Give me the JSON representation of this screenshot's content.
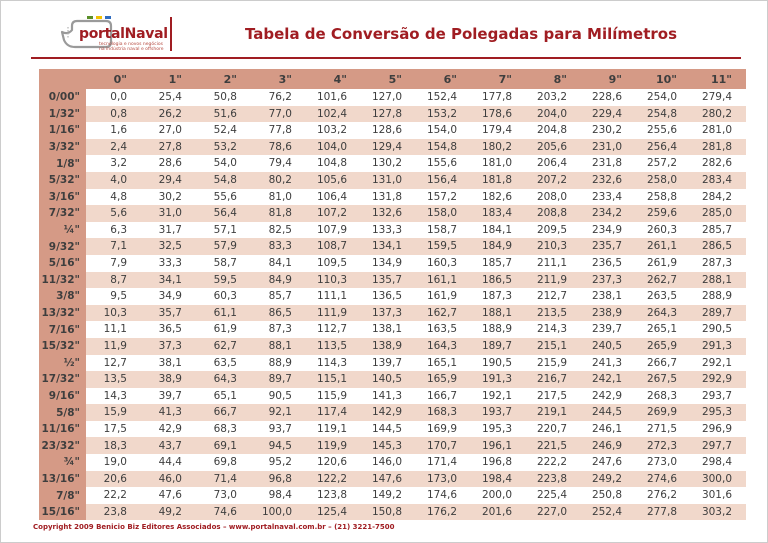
{
  "page": {
    "background": "#ffffff",
    "border_color": "#cccccc",
    "accent_color": "#a01d22"
  },
  "logo": {
    "wordmark": "portalNaval",
    "tagline_line1": "tecnologia e novos negócios",
    "tagline_line2": "na indústria naval e offshore",
    "icon": "ship-outline-icon",
    "accent_dashes": [
      "#5a8f29",
      "#f2c200",
      "#2f6bbf"
    ]
  },
  "header": {
    "title": "Tabela de Conversão de Polegadas para Milímetros"
  },
  "table": {
    "header_bg": "#d59a86",
    "stripe_bg": "#f1d8cb",
    "columns": [
      "0\"",
      "1\"",
      "2\"",
      "3\"",
      "4\"",
      "5\"",
      "6\"",
      "7\"",
      "8\"",
      "9\"",
      "10\"",
      "11\""
    ],
    "rows": [
      {
        "label": "0/00\"",
        "values": [
          "0,0",
          "25,4",
          "50,8",
          "76,2",
          "101,6",
          "127,0",
          "152,4",
          "177,8",
          "203,2",
          "228,6",
          "254,0",
          "279,4"
        ]
      },
      {
        "label": "1/32\"",
        "values": [
          "0,8",
          "26,2",
          "51,6",
          "77,0",
          "102,4",
          "127,8",
          "153,2",
          "178,6",
          "204,0",
          "229,4",
          "254,8",
          "280,2"
        ]
      },
      {
        "label": "1/16\"",
        "values": [
          "1,6",
          "27,0",
          "52,4",
          "77,8",
          "103,2",
          "128,6",
          "154,0",
          "179,4",
          "204,8",
          "230,2",
          "255,6",
          "281,0"
        ]
      },
      {
        "label": "3/32\"",
        "values": [
          "2,4",
          "27,8",
          "53,2",
          "78,6",
          "104,0",
          "129,4",
          "154,8",
          "180,2",
          "205,6",
          "231,0",
          "256,4",
          "281,8"
        ]
      },
      {
        "label": "1/8\"",
        "values": [
          "3,2",
          "28,6",
          "54,0",
          "79,4",
          "104,8",
          "130,2",
          "155,6",
          "181,0",
          "206,4",
          "231,8",
          "257,2",
          "282,6"
        ]
      },
      {
        "label": "5/32\"",
        "values": [
          "4,0",
          "29,4",
          "54,8",
          "80,2",
          "105,6",
          "131,0",
          "156,4",
          "181,8",
          "207,2",
          "232,6",
          "258,0",
          "283,4"
        ]
      },
      {
        "label": "3/16\"",
        "values": [
          "4,8",
          "30,2",
          "55,6",
          "81,0",
          "106,4",
          "131,8",
          "157,2",
          "182,6",
          "208,0",
          "233,4",
          "258,8",
          "284,2"
        ]
      },
      {
        "label": "7/32\"",
        "values": [
          "5,6",
          "31,0",
          "56,4",
          "81,8",
          "107,2",
          "132,6",
          "158,0",
          "183,4",
          "208,8",
          "234,2",
          "259,6",
          "285,0"
        ]
      },
      {
        "label": "¼\"",
        "values": [
          "6,3",
          "31,7",
          "57,1",
          "82,5",
          "107,9",
          "133,3",
          "158,7",
          "184,1",
          "209,5",
          "234,9",
          "260,3",
          "285,7"
        ]
      },
      {
        "label": "9/32\"",
        "values": [
          "7,1",
          "32,5",
          "57,9",
          "83,3",
          "108,7",
          "134,1",
          "159,5",
          "184,9",
          "210,3",
          "235,7",
          "261,1",
          "286,5"
        ]
      },
      {
        "label": "5/16\"",
        "values": [
          "7,9",
          "33,3",
          "58,7",
          "84,1",
          "109,5",
          "134,9",
          "160,3",
          "185,7",
          "211,1",
          "236,5",
          "261,9",
          "287,3"
        ]
      },
      {
        "label": "11/32\"",
        "values": [
          "8,7",
          "34,1",
          "59,5",
          "84,9",
          "110,3",
          "135,7",
          "161,1",
          "186,5",
          "211,9",
          "237,3",
          "262,7",
          "288,1"
        ]
      },
      {
        "label": "3/8\"",
        "values": [
          "9,5",
          "34,9",
          "60,3",
          "85,7",
          "111,1",
          "136,5",
          "161,9",
          "187,3",
          "212,7",
          "238,1",
          "263,5",
          "288,9"
        ]
      },
      {
        "label": "13/32\"",
        "values": [
          "10,3",
          "35,7",
          "61,1",
          "86,5",
          "111,9",
          "137,3",
          "162,7",
          "188,1",
          "213,5",
          "238,9",
          "264,3",
          "289,7"
        ]
      },
      {
        "label": "7/16\"",
        "values": [
          "11,1",
          "36,5",
          "61,9",
          "87,3",
          "112,7",
          "138,1",
          "163,5",
          "188,9",
          "214,3",
          "239,7",
          "265,1",
          "290,5"
        ]
      },
      {
        "label": "15/32\"",
        "values": [
          "11,9",
          "37,3",
          "62,7",
          "88,1",
          "113,5",
          "138,9",
          "164,3",
          "189,7",
          "215,1",
          "240,5",
          "265,9",
          "291,3"
        ]
      },
      {
        "label": "½\"",
        "values": [
          "12,7",
          "38,1",
          "63,5",
          "88,9",
          "114,3",
          "139,7",
          "165,1",
          "190,5",
          "215,9",
          "241,3",
          "266,7",
          "292,1"
        ]
      },
      {
        "label": "17/32\"",
        "values": [
          "13,5",
          "38,9",
          "64,3",
          "89,7",
          "115,1",
          "140,5",
          "165,9",
          "191,3",
          "216,7",
          "242,1",
          "267,5",
          "292,9"
        ]
      },
      {
        "label": "9/16\"",
        "values": [
          "14,3",
          "39,7",
          "65,1",
          "90,5",
          "115,9",
          "141,3",
          "166,7",
          "192,1",
          "217,5",
          "242,9",
          "268,3",
          "293,7"
        ]
      },
      {
        "label": "5/8\"",
        "values": [
          "15,9",
          "41,3",
          "66,7",
          "92,1",
          "117,4",
          "142,9",
          "168,3",
          "193,7",
          "219,1",
          "244,5",
          "269,9",
          "295,3"
        ]
      },
      {
        "label": "11/16\"",
        "values": [
          "17,5",
          "42,9",
          "68,3",
          "93,7",
          "119,1",
          "144,5",
          "169,9",
          "195,3",
          "220,7",
          "246,1",
          "271,5",
          "296,9"
        ]
      },
      {
        "label": "23/32\"",
        "values": [
          "18,3",
          "43,7",
          "69,1",
          "94,5",
          "119,9",
          "145,3",
          "170,7",
          "196,1",
          "221,5",
          "246,9",
          "272,3",
          "297,7"
        ]
      },
      {
        "label": "¾\"",
        "values": [
          "19,0",
          "44,4",
          "69,8",
          "95,2",
          "120,6",
          "146,0",
          "171,4",
          "196,8",
          "222,2",
          "247,6",
          "273,0",
          "298,4"
        ]
      },
      {
        "label": "13/16\"",
        "values": [
          "20,6",
          "46,0",
          "71,4",
          "96,8",
          "122,2",
          "147,6",
          "173,0",
          "198,4",
          "223,8",
          "249,2",
          "274,6",
          "300,0"
        ]
      },
      {
        "label": "7/8\"",
        "values": [
          "22,2",
          "47,6",
          "73,0",
          "98,4",
          "123,8",
          "149,2",
          "174,6",
          "200,0",
          "225,4",
          "250,8",
          "276,2",
          "301,6"
        ]
      },
      {
        "label": "15/16\"",
        "values": [
          "23,8",
          "49,2",
          "74,6",
          "100,0",
          "125,4",
          "150,8",
          "176,2",
          "201,6",
          "227,0",
          "252,4",
          "277,8",
          "303,2"
        ]
      }
    ]
  },
  "footer": {
    "copyright": "Copyright 2009 Benicio Biz Editores Associados – www.portalnaval.com.br – (21) 3221-7500"
  }
}
